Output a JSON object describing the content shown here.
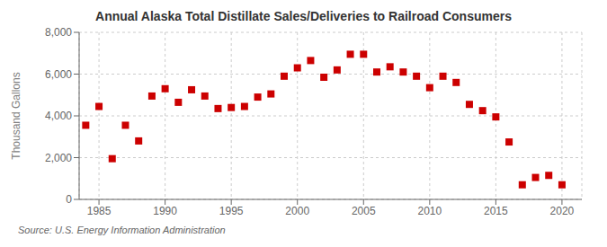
{
  "chart_data": {
    "type": "scatter",
    "title": "Annual Alaska Total Distillate Sales/Deliveries to Railroad Consumers",
    "ylabel": "Thousand Gallons",
    "annotation": "Source: U.S. Energy Information Administration",
    "x": [
      1984,
      1985,
      1986,
      1987,
      1988,
      1989,
      1990,
      1991,
      1992,
      1993,
      1994,
      1995,
      1996,
      1997,
      1998,
      1999,
      2000,
      2001,
      2002,
      2003,
      2004,
      2005,
      2006,
      2007,
      2008,
      2009,
      2010,
      2011,
      2012,
      2013,
      2014,
      2015,
      2016,
      2017,
      2018,
      2019,
      2020
    ],
    "values": [
      3550,
      4450,
      1950,
      3550,
      2800,
      4950,
      5300,
      4650,
      5250,
      4950,
      4350,
      4400,
      4450,
      4900,
      5050,
      5900,
      6300,
      6650,
      5850,
      6200,
      6950,
      6950,
      6100,
      6350,
      6100,
      5900,
      5350,
      5900,
      5600,
      4550,
      4250,
      3950,
      2750,
      700,
      1050,
      1150,
      700
    ],
    "color": "#cc0000",
    "marker": "square",
    "xlim": [
      1983.5,
      2021.5
    ],
    "xticks": [
      1985,
      1990,
      1995,
      2000,
      2005,
      2010,
      2015,
      2020
    ],
    "ylim": [
      0,
      8000
    ],
    "yticks": [
      0,
      {
        "value": 2000,
        "label": "2,000"
      },
      {
        "value": 4000,
        "label": "4,000"
      },
      {
        "value": 6000,
        "label": "6,000"
      },
      {
        "value": 8000,
        "label": "8,000"
      }
    ],
    "grid": true
  }
}
